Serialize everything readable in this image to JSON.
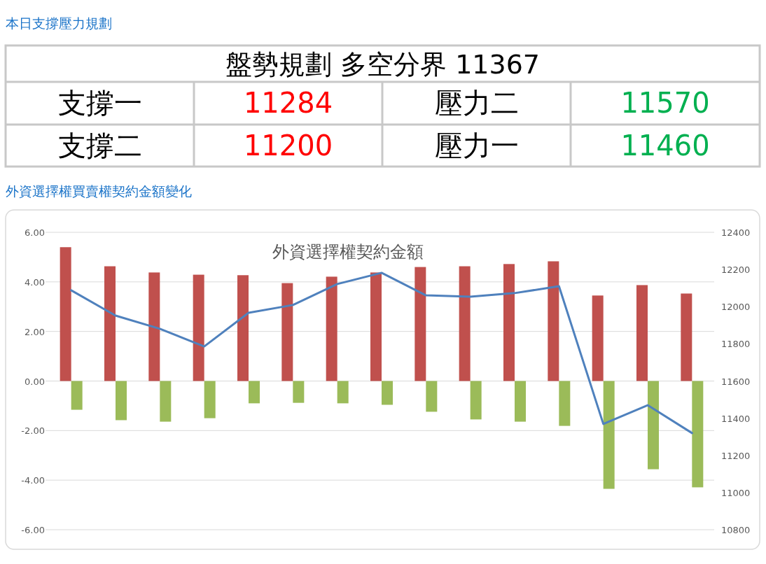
{
  "chart_data": [
    {
      "type": "other",
      "title": "本日支撐壓力規劃",
      "annotations": [
        "盤勢規劃 多空分界 11367",
        "支撐一",
        "11284",
        "壓力二",
        "11570",
        "支撐二",
        "11200",
        "壓力一",
        "11460"
      ],
      "colors": [
        "#000000",
        "#000000",
        "#ff0000",
        "#000000",
        "#00b050",
        "#000000",
        "#ff0000",
        "#000000",
        "#00b050"
      ]
    },
    {
      "type": "bar",
      "title": "外資選擇權契約金額",
      "subtitle": "外資選擇權買賣權契約金額變化",
      "categories": [
        null,
        null,
        null,
        null,
        null,
        null,
        null,
        null,
        null,
        null,
        null,
        null,
        null,
        null,
        null
      ],
      "series": [
        {
          "type": "bar",
          "color": "#c0504d",
          "values": [
            5.4,
            4.63,
            4.38,
            4.29,
            4.27,
            3.95,
            4.21,
            4.38,
            4.6,
            4.63,
            4.72,
            4.83,
            3.45,
            3.87,
            3.53
          ]
        },
        {
          "type": "bar",
          "color": "#9bbb59",
          "values": [
            -1.16,
            -1.58,
            -1.64,
            -1.5,
            -0.9,
            -0.88,
            -0.9,
            -0.96,
            -1.24,
            -1.55,
            -1.64,
            -1.81,
            -4.35,
            -3.56,
            -4.29
          ]
        },
        {
          "type": "line",
          "axis": "y2",
          "color": "#4f81bd",
          "values": [
            12088,
            11952,
            11881,
            11786,
            11967,
            12009,
            12122,
            12182,
            12061,
            12054,
            12073,
            12110,
            11369,
            11470,
            11320
          ]
        }
      ],
      "ylim": [
        -6,
        6
      ],
      "yticks": [
        {
          "value": -6,
          "label": "-6.00"
        },
        {
          "value": -4,
          "label": "-4.00"
        },
        {
          "value": -2,
          "label": "-2.00"
        },
        {
          "value": 0,
          "label": "0.00"
        },
        {
          "value": 2,
          "label": "2.00"
        },
        {
          "value": 4,
          "label": "4.00"
        },
        {
          "value": 6,
          "label": "6.00"
        }
      ],
      "y2lim": [
        10800,
        12400
      ],
      "y2ticks": [
        10800,
        11000,
        11200,
        11400,
        11600,
        11800,
        12000,
        12200,
        12400
      ],
      "grid": "y",
      "marker": "none",
      "line_style": "solid"
    }
  ]
}
